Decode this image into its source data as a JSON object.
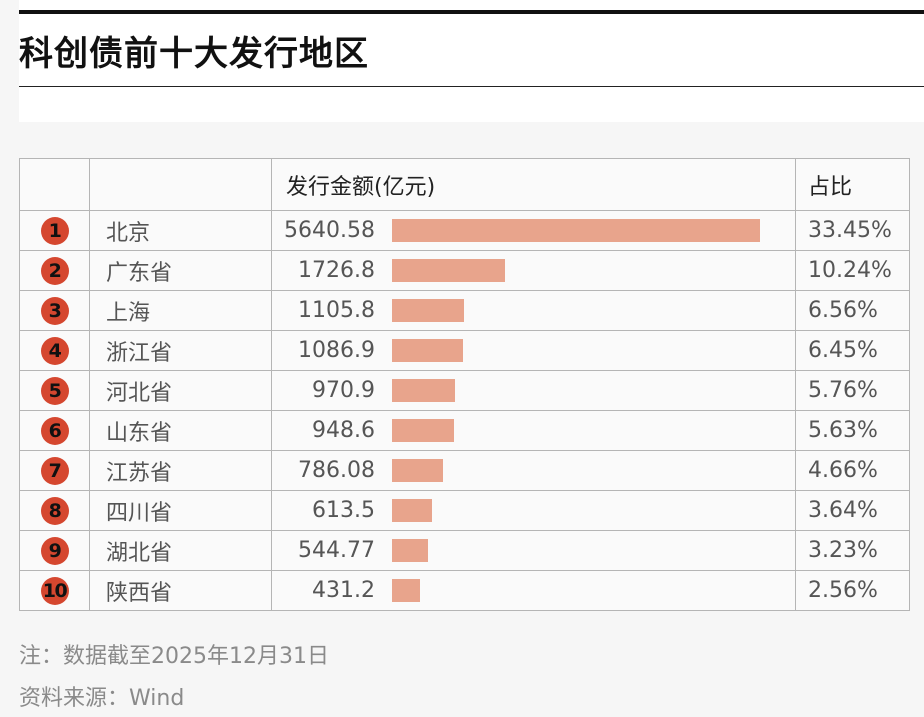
{
  "title": "科创债前十大发行地区",
  "colors": {
    "badge": "#d5472f",
    "bar": "#e8a48c"
  },
  "chart_data": {
    "type": "table",
    "title": "科创债前十大发行地区",
    "columns": [
      "",
      "",
      "发行金额(亿元)",
      "占比"
    ],
    "rows": [
      {
        "rank": "1",
        "region": "北京",
        "amount": 5640.58,
        "amount_label": "5640.58",
        "share": "33.45%"
      },
      {
        "rank": "2",
        "region": "广东省",
        "amount": 1726.8,
        "amount_label": "1726.8",
        "share": "10.24%"
      },
      {
        "rank": "3",
        "region": "上海",
        "amount": 1105.8,
        "amount_label": "1105.8",
        "share": "6.56%"
      },
      {
        "rank": "4",
        "region": "浙江省",
        "amount": 1086.9,
        "amount_label": "1086.9",
        "share": "6.45%"
      },
      {
        "rank": "5",
        "region": "河北省",
        "amount": 970.9,
        "amount_label": "970.9",
        "share": "5.76%"
      },
      {
        "rank": "6",
        "region": "山东省",
        "amount": 948.6,
        "amount_label": "948.6",
        "share": "5.63%"
      },
      {
        "rank": "7",
        "region": "江苏省",
        "amount": 786.08,
        "amount_label": "786.08",
        "share": "4.66%"
      },
      {
        "rank": "8",
        "region": "四川省",
        "amount": 613.5,
        "amount_label": "613.5",
        "share": "3.64%"
      },
      {
        "rank": "9",
        "region": "湖北省",
        "amount": 544.77,
        "amount_label": "544.77",
        "share": "3.23%"
      },
      {
        "rank": "10",
        "region": "陕西省",
        "amount": 431.2,
        "amount_label": "431.2",
        "share": "2.56%"
      }
    ],
    "bar_max": 5640.58
  },
  "footer": {
    "note": "注：数据截至2025年12月31日",
    "source": "资料来源：Wind"
  }
}
